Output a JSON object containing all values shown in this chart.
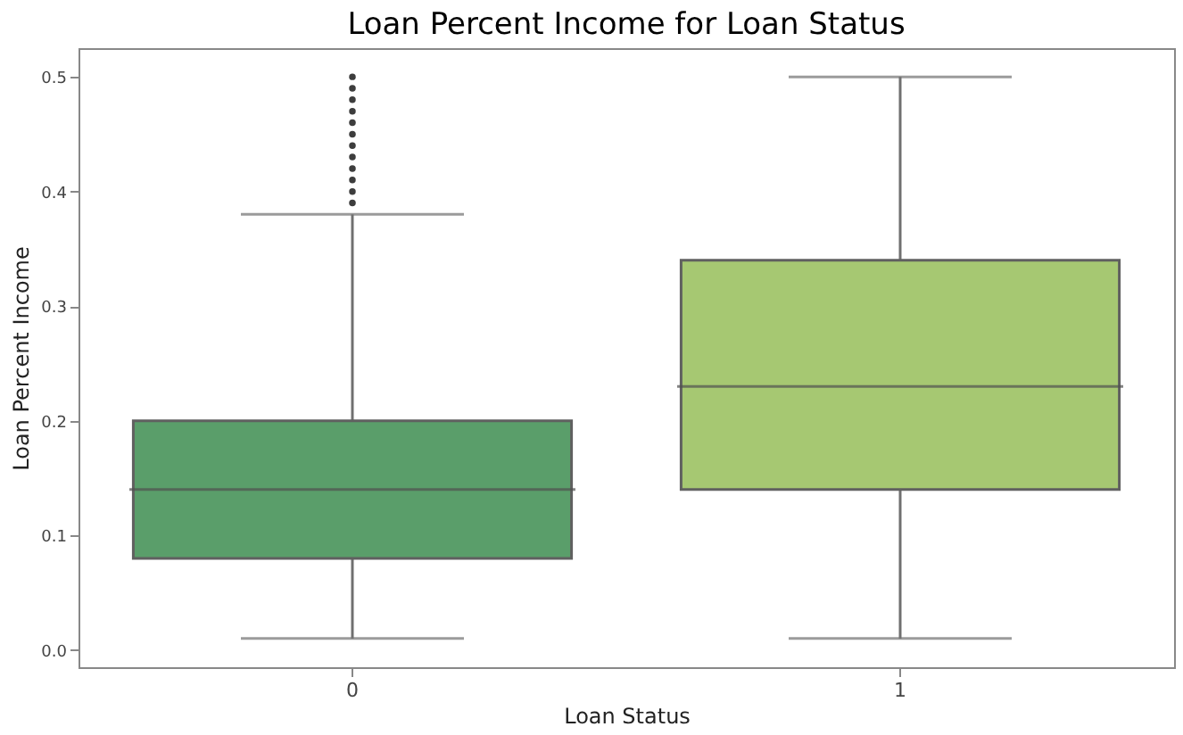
{
  "chart_data": {
    "type": "box",
    "title": "Loan Percent Income for Loan Status",
    "xlabel": "Loan Status",
    "ylabel": "Loan Percent Income",
    "categories": [
      "0",
      "1"
    ],
    "colors": [
      "#5a9e6a",
      "#a6c872"
    ],
    "boxes": [
      {
        "low": 0.01,
        "q1": 0.08,
        "median": 0.14,
        "q3": 0.2,
        "high": 0.38,
        "outliers": [
          0.39,
          0.4,
          0.41,
          0.42,
          0.43,
          0.44,
          0.45,
          0.46,
          0.47,
          0.48,
          0.49,
          0.5
        ]
      },
      {
        "low": 0.01,
        "q1": 0.14,
        "median": 0.23,
        "q3": 0.34,
        "high": 0.5
      }
    ],
    "ylim": [
      -0.015,
      0.525
    ],
    "yticks": [
      {
        "value": 0,
        "label": "0.0"
      },
      0.1,
      0.2,
      0.3,
      0.4,
      0.5
    ],
    "grid": false
  }
}
